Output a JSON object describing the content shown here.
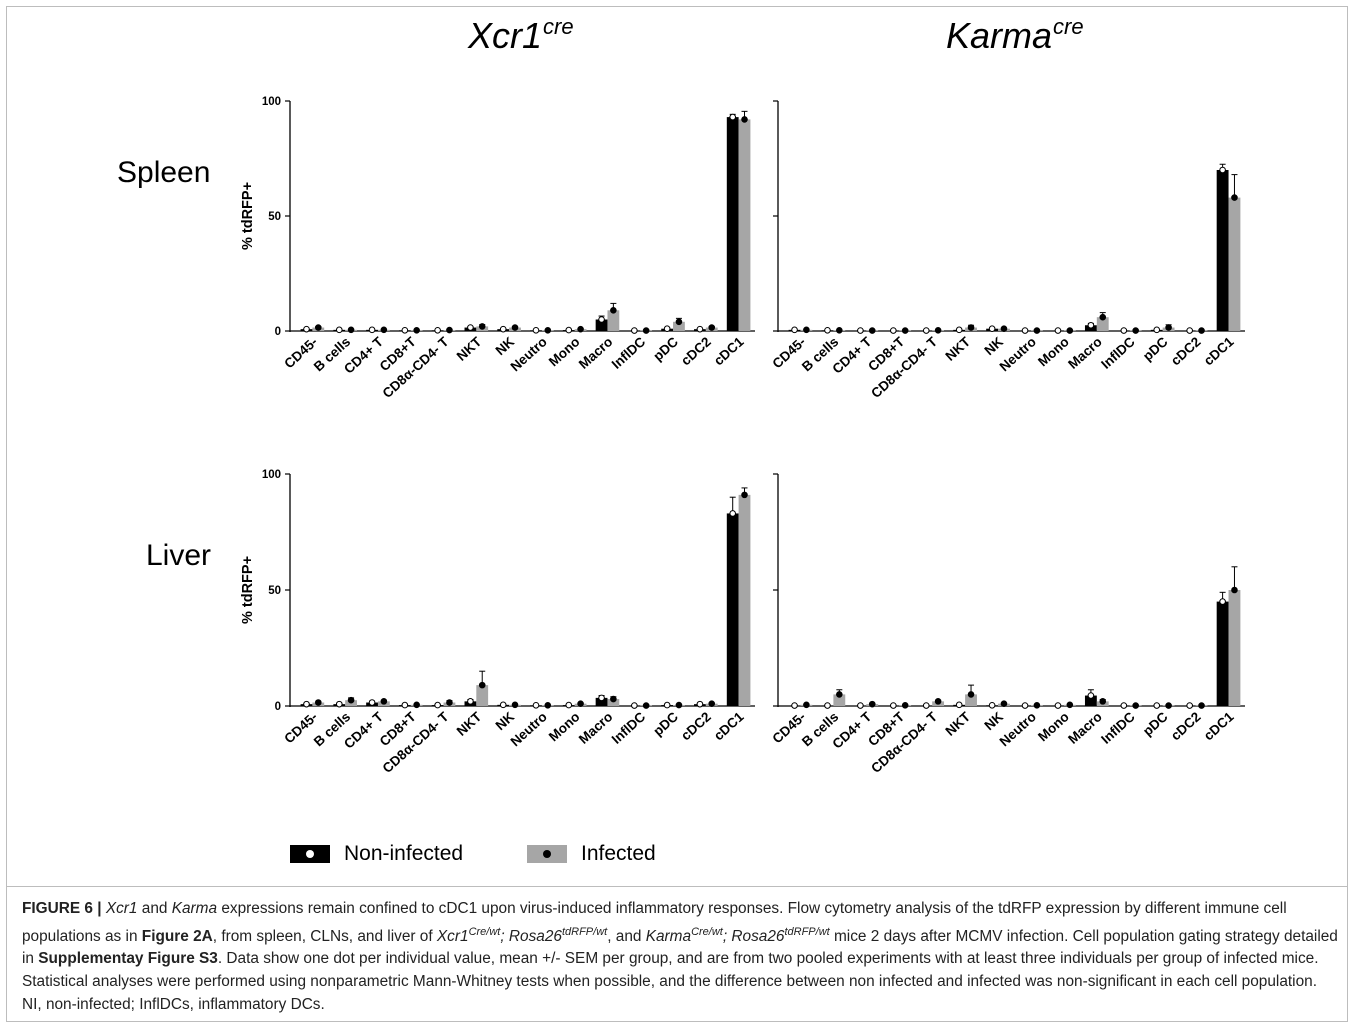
{
  "titles": {
    "left_col": "Xcr1",
    "left_col_sup": "cre",
    "right_col": "Karma",
    "right_col_sup": "cre",
    "row_top": "Spleen",
    "row_bottom": "Liver"
  },
  "legend": [
    {
      "label": "Non-infected",
      "bar_color": "#000000",
      "dot_color": "#ffffff"
    },
    {
      "label": "Infected",
      "bar_color": "#a6a6a6",
      "dot_color": "#000000"
    }
  ],
  "colors": {
    "noninfected_bar": "#000000",
    "infected_bar": "#a6a6a6",
    "axis": "#000000"
  },
  "chart_data": [
    {
      "type": "bar",
      "panel": "Spleen - Xcr1cre",
      "ylabel": "% tdRFP+",
      "ylim": [
        0,
        100
      ],
      "yticks": [
        0,
        50,
        100
      ],
      "categories": [
        "CD45-",
        "B cells",
        "CD4+ T",
        "CD8+T",
        "CD8α-CD4- T",
        "NKT",
        "NK",
        "Neutro",
        "Mono",
        "Macro",
        "InflDC",
        "pDC",
        "cDC2",
        "cDC1"
      ],
      "series": [
        {
          "name": "Non-infected",
          "values": [
            0.8,
            0.5,
            0.5,
            0.3,
            0.3,
            1.5,
            0.8,
            0.3,
            0.4,
            5,
            0.2,
            1,
            0.8,
            93
          ],
          "errors": [
            0.3,
            0.2,
            0.2,
            0.1,
            0.1,
            0.5,
            0.3,
            0.1,
            0.1,
            1.5,
            0.1,
            0.3,
            0.3,
            1.2
          ]
        },
        {
          "name": "Infected",
          "values": [
            1.5,
            0.5,
            0.5,
            0.3,
            0.4,
            2,
            1.5,
            0.3,
            0.8,
            9,
            0.2,
            4,
            1.5,
            92
          ],
          "errors": [
            0.4,
            0.2,
            0.2,
            0.1,
            0.1,
            0.8,
            0.5,
            0.1,
            0.3,
            3,
            0.1,
            1.5,
            0.5,
            3.5
          ]
        }
      ]
    },
    {
      "type": "bar",
      "panel": "Spleen - Karmacre",
      "ylabel": "",
      "ylim": [
        0,
        100
      ],
      "yticks": [
        0,
        50,
        100
      ],
      "categories": [
        "CD45-",
        "B cells",
        "CD4+ T",
        "CD8+T",
        "CD8α-CD4- T",
        "NKT",
        "NK",
        "Neutro",
        "Mono",
        "Macro",
        "InflDC",
        "pDC",
        "cDC2",
        "cDC1"
      ],
      "series": [
        {
          "name": "Non-infected",
          "values": [
            0.5,
            0.3,
            0.2,
            0.2,
            0.2,
            0.5,
            1,
            0.2,
            0.2,
            2.5,
            0.2,
            0.5,
            0.2,
            70
          ],
          "errors": [
            0.2,
            0.1,
            0.1,
            0.1,
            0.1,
            0.2,
            0.3,
            0.1,
            0.1,
            0.8,
            0.1,
            0.2,
            0.1,
            2.5
          ]
        },
        {
          "name": "Infected",
          "values": [
            0.5,
            0.3,
            0.2,
            0.2,
            0.3,
            1.5,
            1,
            0.2,
            0.2,
            6,
            0.2,
            1.5,
            0.2,
            58
          ],
          "errors": [
            0.2,
            0.1,
            0.1,
            0.1,
            0.1,
            1,
            0.3,
            0.1,
            0.1,
            2,
            0.1,
            1.2,
            0.1,
            10
          ]
        }
      ]
    },
    {
      "type": "bar",
      "panel": "Liver - Xcr1cre",
      "ylabel": "% tdRFP+",
      "ylim": [
        0,
        100
      ],
      "yticks": [
        0,
        50,
        100
      ],
      "categories": [
        "CD45-",
        "B cells",
        "CD4+ T",
        "CD8+T",
        "CD8α-CD4- T",
        "NKT",
        "NK",
        "Neutro",
        "Mono",
        "Macro",
        "InflDC",
        "pDC",
        "cDC2",
        "cDC1"
      ],
      "series": [
        {
          "name": "Non-infected",
          "values": [
            0.8,
            0.8,
            1.5,
            0.4,
            0.4,
            2,
            0.5,
            0.3,
            0.4,
            3.5,
            0.2,
            0.4,
            0.8,
            83
          ],
          "errors": [
            0.4,
            0.4,
            0.5,
            0.1,
            0.1,
            0.8,
            0.2,
            0.1,
            0.1,
            1,
            0.1,
            0.1,
            0.3,
            7
          ]
        },
        {
          "name": "Infected",
          "values": [
            1.5,
            2.5,
            2,
            0.5,
            1.5,
            9,
            0.5,
            0.3,
            1,
            3,
            0.2,
            0.4,
            1,
            91
          ],
          "errors": [
            0.5,
            1,
            0.5,
            0.2,
            0.8,
            6,
            0.2,
            0.1,
            0.3,
            1,
            0.1,
            0.1,
            0.3,
            3
          ]
        }
      ]
    },
    {
      "type": "bar",
      "panel": "Liver - Karmacre",
      "ylabel": "",
      "ylim": [
        0,
        100
      ],
      "yticks": [
        0,
        50,
        100
      ],
      "categories": [
        "CD45-",
        "B cells",
        "CD4+ T",
        "CD8+T",
        "CD8α-CD4- T",
        "NKT",
        "NK",
        "Neutro",
        "Mono",
        "Macro",
        "InflDC",
        "pDC",
        "cDC2",
        "cDC1"
      ],
      "series": [
        {
          "name": "Non-infected",
          "values": [
            0.2,
            0.2,
            0.2,
            0.2,
            0.2,
            0.5,
            0.3,
            0.2,
            0.2,
            4.5,
            0.2,
            0.2,
            0.2,
            45
          ],
          "errors": [
            0.1,
            0.1,
            0.1,
            0.1,
            0.1,
            0.2,
            0.1,
            0.1,
            0.1,
            2.5,
            0.1,
            0.1,
            0.1,
            4
          ]
        },
        {
          "name": "Infected",
          "values": [
            0.5,
            5,
            0.8,
            0.3,
            2,
            5,
            1,
            0.3,
            0.5,
            2,
            0.2,
            0.2,
            0.2,
            50
          ],
          "errors": [
            0.2,
            2,
            0.3,
            0.1,
            0.5,
            4,
            0.3,
            0.1,
            0.2,
            0.8,
            0.1,
            0.1,
            0.1,
            10
          ]
        }
      ]
    }
  ],
  "caption": {
    "label": "FIGURE 6 |",
    "t1": "Xcr1",
    "t2": " and ",
    "t3": "Karma",
    "t4": " expressions remain confined to cDC1 upon virus-induced inflammatory responses. Flow cytometry analysis of the tdRFP expression by different immune cell populations as in ",
    "fig_ref": "Figure 2A",
    "t5": ", from spleen, CLNs, and liver of ",
    "g1": "Xcr1",
    "g1_sup": "Cre/wt",
    "g1_sep": "; ",
    "g2": "Rosa26",
    "g2_sup": "tdRFP/wt",
    "t6": ", and ",
    "g3": "Karma",
    "g3_sup": "Cre/wt",
    "g3_sep": "; ",
    "g4": "Rosa26",
    "g4_sup": "tdRFP/wt",
    "t7": " mice 2 days after MCMV infection. Cell population gating strategy detailed in ",
    "supp_ref": "Supplementay Figure S3",
    "t8": ". Data show one dot per individual value, mean +/- SEM per group, and are from two pooled experiments with at least three individuals per group of infected mice. Statistical analyses were performed using nonparametric Mann-Whitney tests when possible, and the difference between non infected and infected was non-significant in each cell population. NI, non-infected; InflDCs, inflammatory DCs."
  }
}
